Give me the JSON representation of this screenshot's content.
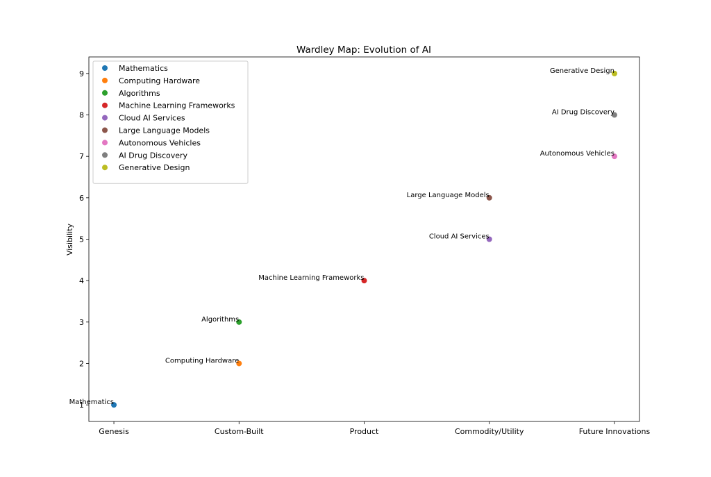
{
  "chart_data": {
    "type": "scatter",
    "title": "Wardley Map: Evolution of AI",
    "xlabel": "",
    "ylabel": "Visibility",
    "x_categories": [
      "Genesis",
      "Custom-Built",
      "Product",
      "Commodity/Utility",
      "Future Innovations"
    ],
    "y_ticks": [
      1,
      2,
      3,
      4,
      5,
      6,
      7,
      8,
      9
    ],
    "xlim": [
      -0.2,
      4.2
    ],
    "ylim": [
      0.6,
      9.4
    ],
    "grid": false,
    "legend_position": "top-left",
    "series": [
      {
        "name": "Mathematics",
        "x": "Genesis",
        "y": 1,
        "label": "Mathematics",
        "color": "#1f77b4"
      },
      {
        "name": "Computing Hardware",
        "x": "Custom-Built",
        "y": 2,
        "label": "Computing Hardware",
        "color": "#ff7f0e"
      },
      {
        "name": "Algorithms",
        "x": "Custom-Built",
        "y": 3,
        "label": "Algorithms",
        "color": "#2ca02c"
      },
      {
        "name": "Machine Learning Frameworks",
        "x": "Product",
        "y": 4,
        "label": "Machine Learning Frameworks",
        "color": "#d62728"
      },
      {
        "name": "Cloud AI Services",
        "x": "Commodity/Utility",
        "y": 5,
        "label": "Cloud AI Services",
        "color": "#9467bd"
      },
      {
        "name": "Large Language Models",
        "x": "Commodity/Utility",
        "y": 6,
        "label": "Large Language Models",
        "color": "#8c564b"
      },
      {
        "name": "Autonomous Vehicles",
        "x": "Future Innovations",
        "y": 7,
        "label": "Autonomous Vehicles",
        "color": "#e377c2"
      },
      {
        "name": "AI Drug Discovery",
        "x": "Future Innovations",
        "y": 8,
        "label": "AI Drug Discovery",
        "color": "#7f7f7f"
      },
      {
        "name": "Generative Design",
        "x": "Future Innovations",
        "y": 9,
        "label": "Generative Design",
        "color": "#bcbd22"
      }
    ]
  }
}
